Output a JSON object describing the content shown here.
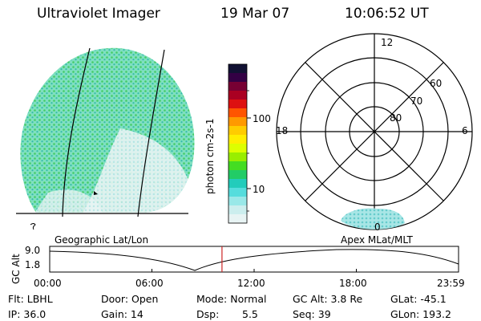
{
  "header": {
    "title": "Ultraviolet Imager",
    "date": "19 Mar 07",
    "time": "10:06:52 UT"
  },
  "colorbar": {
    "label": "photon cm-2s-1",
    "ticks": [
      "100",
      "10"
    ],
    "colors": [
      "#111133",
      "#330044",
      "#770033",
      "#aa0022",
      "#dd1111",
      "#ff5500",
      "#ff9900",
      "#ffcc00",
      "#ffee00",
      "#ddff00",
      "#99ee00",
      "#44dd22",
      "#22cc66",
      "#22ccbb",
      "#55dddd",
      "#99e8e8",
      "#cceeee",
      "#e8f4f4"
    ]
  },
  "polar": {
    "hour_labels": {
      "top": "12",
      "left": "18",
      "right": "6",
      "bottom": "0"
    },
    "lat_labels": [
      "60",
      "70",
      "80"
    ]
  },
  "timeline": {
    "left_label": "Geographic Lat/Lon",
    "right_label": "Apex MLat/MLT",
    "y_axis_label": "GC Alt",
    "y_top": "9.0",
    "y_bottom": "1.8",
    "x_ticks": [
      "00:00",
      "06:00",
      "12:00",
      "18:00",
      "23:59"
    ],
    "current_time_fraction": 0.4214
  },
  "info": {
    "flt": "Flt: LBHL",
    "ip": "IP: 36.0",
    "door": "Door: Open",
    "gain": "Gain: 14",
    "mode": "Mode: Normal",
    "dsp": "Dsp:",
    "dsp_val": "5.5",
    "gcalt": "GC Alt: 3.8 Re",
    "seq": "Seq: 39",
    "glat": "GLat: -45.1",
    "glon": "GLon: 193.2"
  },
  "colors": {
    "accent_line": "#cc2222",
    "cyan": "#88dddd"
  }
}
